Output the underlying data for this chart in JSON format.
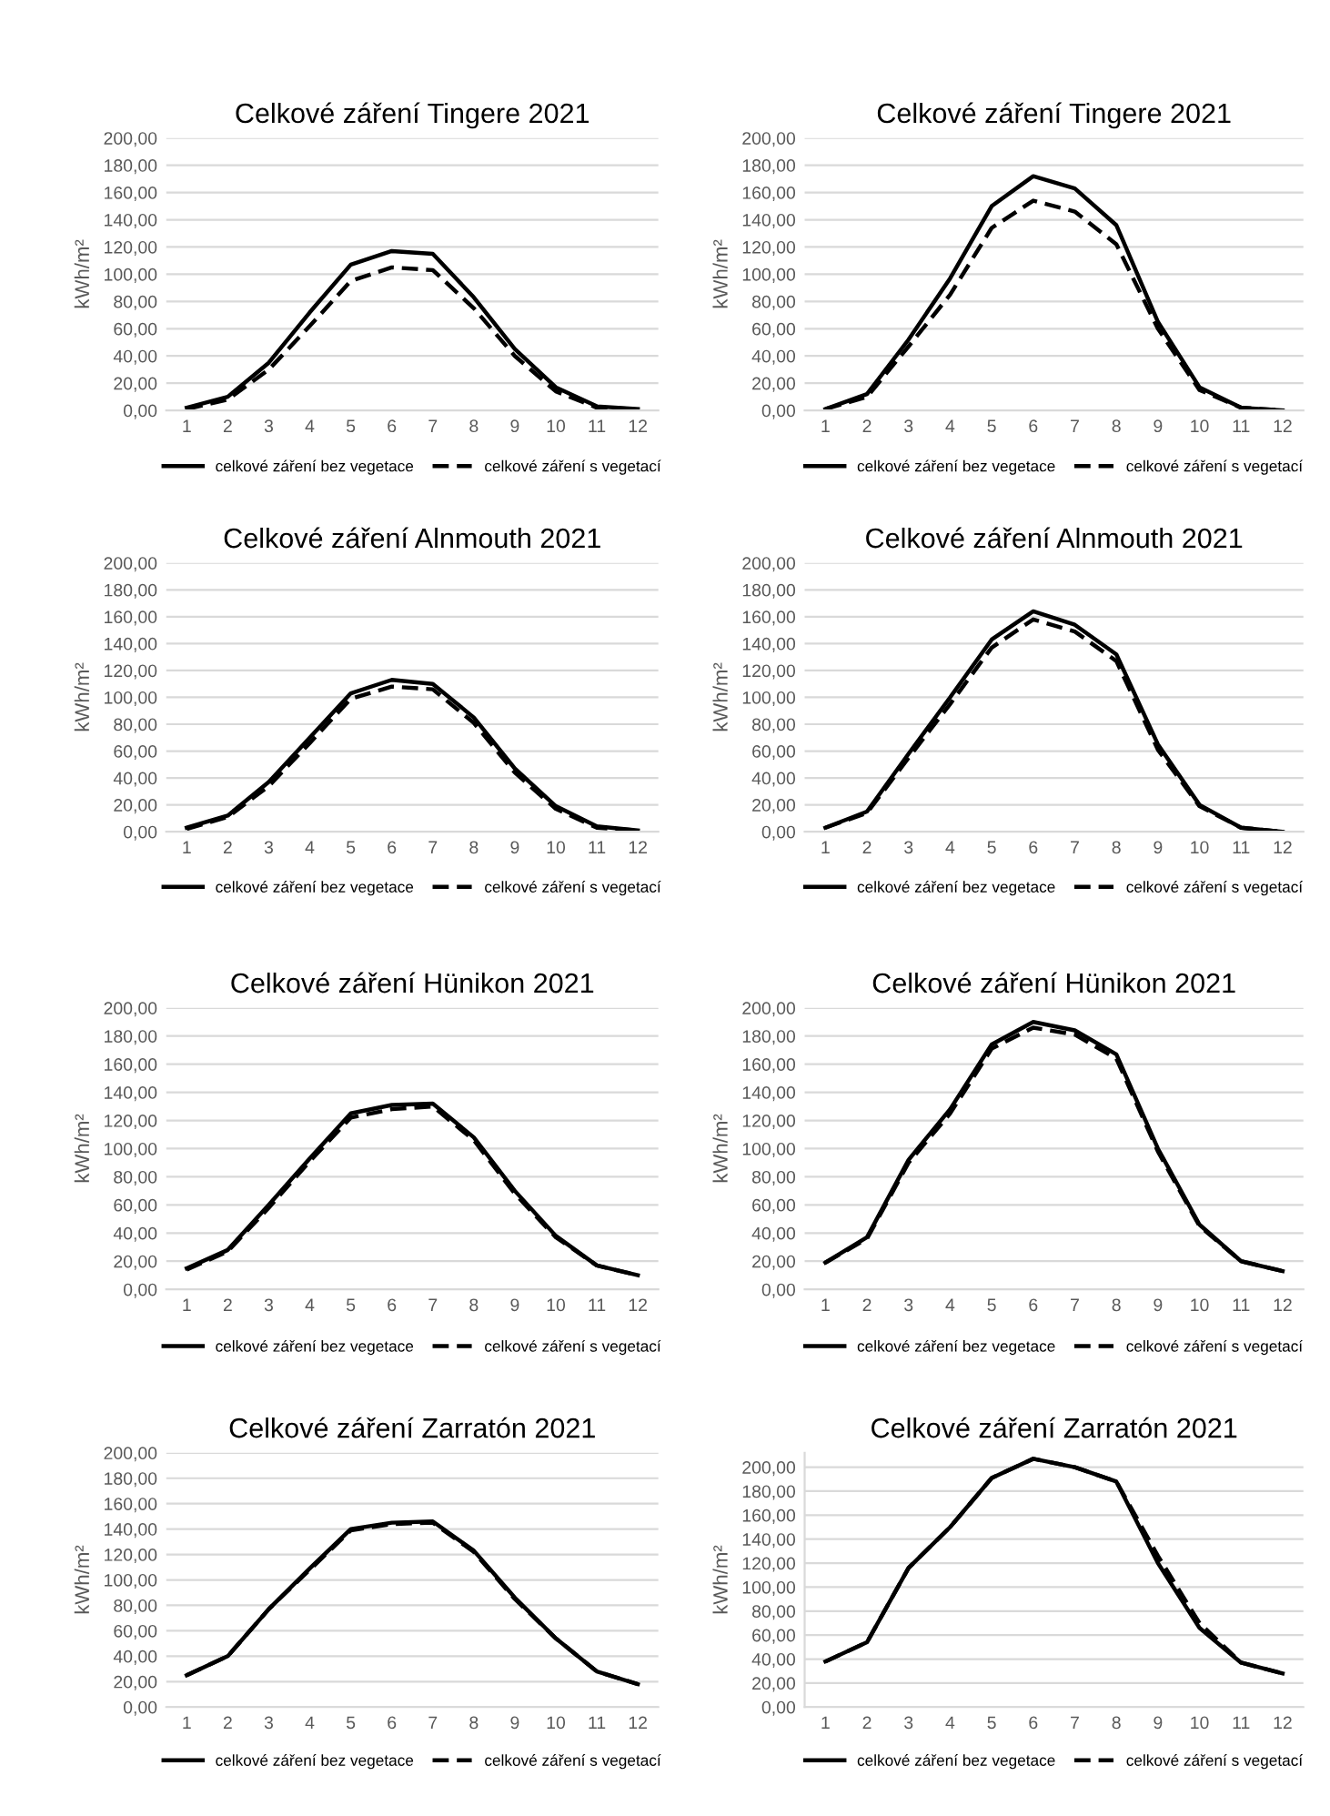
{
  "chart_data": [
    {
      "type": "line",
      "title": "Celkové záření Tingere 2021",
      "ylabel": "kWh/m²",
      "categories": [
        "1",
        "2",
        "3",
        "4",
        "5",
        "6",
        "7",
        "8",
        "9",
        "10",
        "11",
        "12"
      ],
      "ylim": [
        0,
        200
      ],
      "yticks": [
        {
          "value": 0,
          "label": "0,00"
        },
        {
          "value": 20,
          "label": "20,00"
        },
        {
          "value": 40,
          "label": "40,00"
        },
        {
          "value": 60,
          "label": "60,00"
        },
        {
          "value": 80,
          "label": "80,00"
        },
        {
          "value": 100,
          "label": "100,00"
        },
        {
          "value": 120,
          "label": "120,00"
        },
        {
          "value": 140,
          "label": "140,00"
        },
        {
          "value": 160,
          "label": "160,00"
        },
        {
          "value": 180,
          "label": "180,00"
        },
        {
          "value": 200,
          "label": "200,00"
        }
      ],
      "grid": "y",
      "legend": "bottom",
      "series": [
        {
          "name": "celkové záření bez vegetace",
          "color": "#000000",
          "line_style": "solid",
          "values": [
            2,
            10,
            35,
            72,
            107,
            117,
            115,
            83,
            45,
            17,
            3,
            1
          ]
        },
        {
          "name": "celkové záření s vegetací",
          "color": "#000000",
          "line_style": "dashed",
          "values": [
            1,
            8,
            30,
            62,
            95,
            105,
            103,
            75,
            40,
            14,
            2,
            1
          ]
        }
      ]
    },
    {
      "type": "line",
      "title": "Celkové záření Tingere 2021",
      "ylabel": "kWh/m²",
      "categories": [
        "1",
        "2",
        "3",
        "4",
        "5",
        "6",
        "7",
        "8",
        "9",
        "10",
        "11",
        "12"
      ],
      "ylim": [
        0,
        200
      ],
      "yticks": [
        {
          "value": 0,
          "label": "0,00"
        },
        {
          "value": 20,
          "label": "20,00"
        },
        {
          "value": 40,
          "label": "40,00"
        },
        {
          "value": 60,
          "label": "60,00"
        },
        {
          "value": 80,
          "label": "80,00"
        },
        {
          "value": 100,
          "label": "100,00"
        },
        {
          "value": 120,
          "label": "120,00"
        },
        {
          "value": 140,
          "label": "140,00"
        },
        {
          "value": 160,
          "label": "160,00"
        },
        {
          "value": 180,
          "label": "180,00"
        },
        {
          "value": 200,
          "label": "200,00"
        }
      ],
      "grid": "y",
      "legend": "bottom",
      "series": [
        {
          "name": "celkové záření bez vegetace",
          "color": "#000000",
          "line_style": "solid",
          "values": [
            1,
            12,
            52,
            97,
            150,
            172,
            163,
            136,
            65,
            17,
            2,
            0
          ]
        },
        {
          "name": "celkové záření s vegetací",
          "color": "#000000",
          "line_style": "dashed",
          "values": [
            1,
            10,
            47,
            85,
            134,
            154,
            146,
            122,
            60,
            15,
            2,
            0
          ]
        }
      ]
    },
    {
      "type": "line",
      "title": "Celkové záření Alnmouth 2021",
      "ylabel": "kWh/m²",
      "categories": [
        "1",
        "2",
        "3",
        "4",
        "5",
        "6",
        "7",
        "8",
        "9",
        "10",
        "11",
        "12"
      ],
      "ylim": [
        0,
        200
      ],
      "yticks": [
        {
          "value": 0,
          "label": "0,00"
        },
        {
          "value": 20,
          "label": "20,00"
        },
        {
          "value": 40,
          "label": "40,00"
        },
        {
          "value": 60,
          "label": "60,00"
        },
        {
          "value": 80,
          "label": "80,00"
        },
        {
          "value": 100,
          "label": "100,00"
        },
        {
          "value": 120,
          "label": "120,00"
        },
        {
          "value": 140,
          "label": "140,00"
        },
        {
          "value": 160,
          "label": "160,00"
        },
        {
          "value": 180,
          "label": "180,00"
        },
        {
          "value": 200,
          "label": "200,00"
        }
      ],
      "grid": "y",
      "legend": "bottom",
      "series": [
        {
          "name": "celkové záření bez vegetace",
          "color": "#000000",
          "line_style": "solid",
          "values": [
            3,
            12,
            37,
            70,
            103,
            113,
            110,
            85,
            47,
            19,
            4,
            1
          ]
        },
        {
          "name": "celkové záření s vegetací",
          "color": "#000000",
          "line_style": "dashed",
          "values": [
            2,
            11,
            34,
            66,
            99,
            108,
            106,
            81,
            44,
            17,
            3,
            1
          ]
        }
      ]
    },
    {
      "type": "line",
      "title": "Celkové záření Alnmouth 2021",
      "ylabel": "kWh/m²",
      "categories": [
        "1",
        "2",
        "3",
        "4",
        "5",
        "6",
        "7",
        "8",
        "9",
        "10",
        "11",
        "12"
      ],
      "ylim": [
        0,
        200
      ],
      "yticks": [
        {
          "value": 0,
          "label": "0,00"
        },
        {
          "value": 20,
          "label": "20,00"
        },
        {
          "value": 40,
          "label": "40,00"
        },
        {
          "value": 60,
          "label": "60,00"
        },
        {
          "value": 80,
          "label": "80,00"
        },
        {
          "value": 100,
          "label": "100,00"
        },
        {
          "value": 120,
          "label": "120,00"
        },
        {
          "value": 140,
          "label": "140,00"
        },
        {
          "value": 160,
          "label": "160,00"
        },
        {
          "value": 180,
          "label": "180,00"
        },
        {
          "value": 200,
          "label": "200,00"
        }
      ],
      "grid": "y",
      "legend": "bottom",
      "series": [
        {
          "name": "celkové záření bez vegetace",
          "color": "#000000",
          "line_style": "solid",
          "values": [
            3,
            15,
            58,
            100,
            143,
            164,
            154,
            132,
            65,
            20,
            3,
            0
          ]
        },
        {
          "name": "celkové záření s vegetací",
          "color": "#000000",
          "line_style": "dashed",
          "values": [
            3,
            14,
            55,
            95,
            137,
            158,
            149,
            127,
            61,
            19,
            3,
            0
          ]
        }
      ]
    },
    {
      "type": "line",
      "title": "Celkové záření Hünikon 2021",
      "ylabel": "kWh/m²",
      "categories": [
        "1",
        "2",
        "3",
        "4",
        "5",
        "6",
        "7",
        "8",
        "9",
        "10",
        "11",
        "12"
      ],
      "ylim": [
        0,
        200
      ],
      "yticks": [
        {
          "value": 0,
          "label": "0,00"
        },
        {
          "value": 20,
          "label": "20,00"
        },
        {
          "value": 40,
          "label": "40,00"
        },
        {
          "value": 60,
          "label": "60,00"
        },
        {
          "value": 80,
          "label": "80,00"
        },
        {
          "value": 100,
          "label": "100,00"
        },
        {
          "value": 120,
          "label": "120,00"
        },
        {
          "value": 140,
          "label": "140,00"
        },
        {
          "value": 160,
          "label": "160,00"
        },
        {
          "value": 180,
          "label": "180,00"
        },
        {
          "value": 200,
          "label": "200,00"
        }
      ],
      "grid": "y",
      "legend": "bottom",
      "series": [
        {
          "name": "celkové záření bez vegetace",
          "color": "#000000",
          "line_style": "solid",
          "values": [
            15,
            28,
            60,
            93,
            125,
            131,
            132,
            108,
            70,
            38,
            17,
            10
          ]
        },
        {
          "name": "celkové záření s vegetací",
          "color": "#000000",
          "line_style": "dashed",
          "values": [
            14,
            27,
            58,
            91,
            122,
            128,
            130,
            106,
            68,
            37,
            17,
            10
          ]
        }
      ]
    },
    {
      "type": "line",
      "title": "Celkové záření Hünikon 2021",
      "ylabel": "kWh/m²",
      "categories": [
        "1",
        "2",
        "3",
        "4",
        "5",
        "6",
        "7",
        "8",
        "9",
        "10",
        "11",
        "12"
      ],
      "ylim": [
        0,
        200
      ],
      "yticks": [
        {
          "value": 0,
          "label": "0,00"
        },
        {
          "value": 20,
          "label": "20,00"
        },
        {
          "value": 40,
          "label": "40,00"
        },
        {
          "value": 60,
          "label": "60,00"
        },
        {
          "value": 80,
          "label": "80,00"
        },
        {
          "value": 100,
          "label": "100,00"
        },
        {
          "value": 120,
          "label": "120,00"
        },
        {
          "value": 140,
          "label": "140,00"
        },
        {
          "value": 160,
          "label": "160,00"
        },
        {
          "value": 180,
          "label": "180,00"
        },
        {
          "value": 200,
          "label": "200,00"
        }
      ],
      "grid": "y",
      "legend": "bottom",
      "series": [
        {
          "name": "celkové záření bez vegetace",
          "color": "#000000",
          "line_style": "solid",
          "values": [
            19,
            37,
            92,
            128,
            174,
            190,
            184,
            167,
            100,
            46,
            20,
            13
          ]
        },
        {
          "name": "celkové záření s vegetací",
          "color": "#000000",
          "line_style": "dashed",
          "values": [
            19,
            36,
            90,
            125,
            171,
            186,
            181,
            164,
            98,
            45,
            20,
            13
          ]
        }
      ]
    },
    {
      "type": "line",
      "title": "Celkové záření Zarratón 2021",
      "ylabel": "kWh/m²",
      "categories": [
        "1",
        "2",
        "3",
        "4",
        "5",
        "6",
        "7",
        "8",
        "9",
        "10",
        "11",
        "12"
      ],
      "ylim": [
        0,
        200
      ],
      "yticks": [
        {
          "value": 0,
          "label": "0,00"
        },
        {
          "value": 20,
          "label": "20,00"
        },
        {
          "value": 40,
          "label": "40,00"
        },
        {
          "value": 60,
          "label": "60,00"
        },
        {
          "value": 80,
          "label": "80,00"
        },
        {
          "value": 100,
          "label": "100,00"
        },
        {
          "value": 120,
          "label": "120,00"
        },
        {
          "value": 140,
          "label": "140,00"
        },
        {
          "value": 160,
          "label": "160,00"
        },
        {
          "value": 180,
          "label": "180,00"
        },
        {
          "value": 200,
          "label": "200,00"
        }
      ],
      "grid": "y",
      "legend": "bottom",
      "series": [
        {
          "name": "celkové záření bez vegetace",
          "color": "#000000",
          "line_style": "solid",
          "values": [
            25,
            40,
            77,
            109,
            140,
            145,
            146,
            123,
            86,
            54,
            28,
            18
          ]
        },
        {
          "name": "celkové záření s vegetací",
          "color": "#000000",
          "line_style": "dashed",
          "values": [
            25,
            40,
            77,
            108,
            139,
            144,
            145,
            122,
            85,
            54,
            28,
            18
          ]
        }
      ]
    },
    {
      "type": "line",
      "title": "Celkové záření Zarratón 2021",
      "ylabel": "kWh/m²",
      "categories": [
        "1",
        "2",
        "3",
        "4",
        "5",
        "6",
        "7",
        "8",
        "9",
        "10",
        "11",
        "12"
      ],
      "ylim": [
        0,
        212
      ],
      "yticks": [
        {
          "value": 0,
          "label": "0,00"
        },
        {
          "value": 20,
          "label": "20,00"
        },
        {
          "value": 40,
          "label": "40,00"
        },
        {
          "value": 60,
          "label": "60,00"
        },
        {
          "value": 80,
          "label": "80,00"
        },
        {
          "value": 100,
          "label": "100,00"
        },
        {
          "value": 120,
          "label": "120,00"
        },
        {
          "value": 140,
          "label": "140,00"
        },
        {
          "value": 160,
          "label": "160,00"
        },
        {
          "value": 180,
          "label": "180,00"
        },
        {
          "value": 200,
          "label": "200,00"
        }
      ],
      "grid": "y",
      "legend": "bottom",
      "series": [
        {
          "name": "celkové záření bez vegetace",
          "color": "#000000",
          "line_style": "solid",
          "values": [
            38,
            54,
            116,
            150,
            191,
            207,
            200,
            188,
            120,
            66,
            37,
            28
          ]
        },
        {
          "name": "celkové záření s vegetací",
          "color": "#000000",
          "line_style": "dashed",
          "values": [
            38,
            54,
            116,
            150,
            191,
            207,
            200,
            188,
            126,
            70,
            37,
            28
          ]
        }
      ]
    }
  ]
}
